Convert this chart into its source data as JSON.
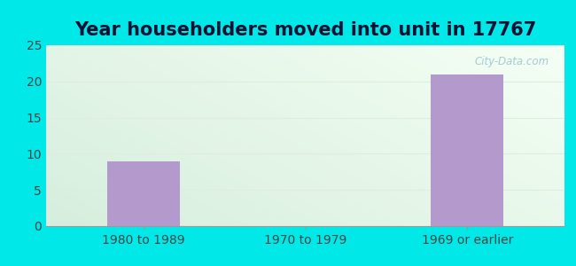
{
  "title": "Year householders moved into unit in 17767",
  "categories": [
    "1980 to 1989",
    "1970 to 1979",
    "1969 or earlier"
  ],
  "values": [
    9,
    0,
    21
  ],
  "bar_color": "#b399cc",
  "ylim": [
    0,
    25
  ],
  "yticks": [
    0,
    5,
    10,
    15,
    20,
    25
  ],
  "background_outer": "#00e8e8",
  "background_inner_topleft": "#d6eedd",
  "background_inner_bottomright": "#f0faee",
  "grid_color": "#e0ece0",
  "title_fontsize": 15,
  "tick_fontsize": 10,
  "watermark": "City-Data.com",
  "title_color": "#111133"
}
